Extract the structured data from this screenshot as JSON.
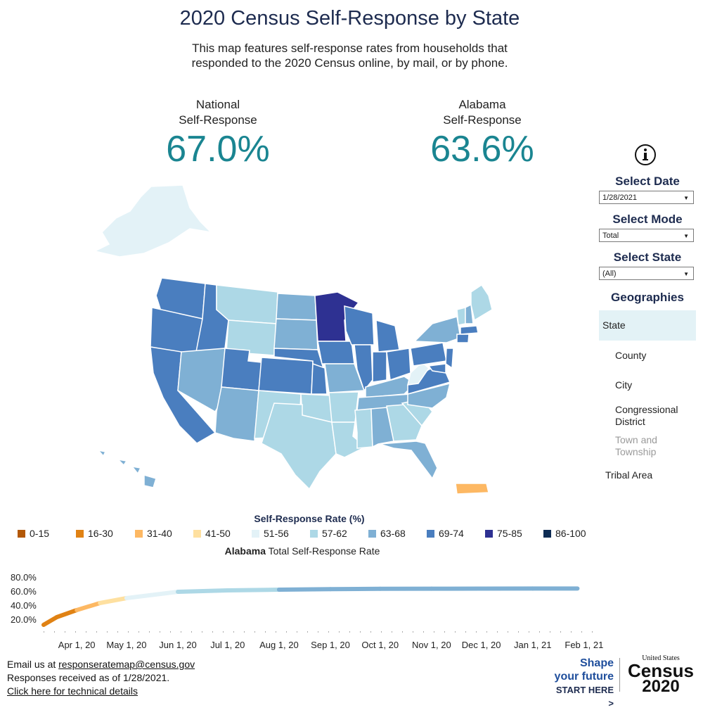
{
  "header": {
    "title": "2020 Census Self-Response by State",
    "subtitle": "This map features self-response rates from households that responded to the 2020 Census online, by mail, or by phone."
  },
  "kpis": {
    "national": {
      "label_line1": "National",
      "label_line2": "Self-Response",
      "value": "67.0%"
    },
    "state": {
      "label_line1": "Alabama",
      "label_line2": "Self-Response",
      "value": "63.6%"
    }
  },
  "controls": {
    "info_icon": "info-icon",
    "date": {
      "label": "Select Date",
      "value": "1/28/2021"
    },
    "mode": {
      "label": "Select Mode",
      "value": "Total"
    },
    "state": {
      "label": "Select State",
      "value": "(All)"
    }
  },
  "geographies": {
    "title": "Geographies",
    "items": [
      {
        "label": "State",
        "selected": true
      },
      {
        "label": "County"
      },
      {
        "label": "City"
      },
      {
        "label": "Congressional District"
      },
      {
        "label": "Town and Township",
        "disabled": true
      },
      {
        "label": "Tribal Area"
      }
    ]
  },
  "legend": {
    "title": "Self-Response Rate (%)",
    "items": [
      {
        "label": "0-15",
        "color": "#b35806"
      },
      {
        "label": "16-30",
        "color": "#e08214"
      },
      {
        "label": "31-40",
        "color": "#fdb863"
      },
      {
        "label": "41-50",
        "color": "#fee0a0"
      },
      {
        "label": "51-56",
        "color": "#e3f2f7"
      },
      {
        "label": "57-62",
        "color": "#add8e6"
      },
      {
        "label": "63-68",
        "color": "#7fb0d4"
      },
      {
        "label": "69-74",
        "color": "#4a7ebf"
      },
      {
        "label": "75-85",
        "color": "#2e3192"
      },
      {
        "label": "86-100",
        "color": "#0d2c54"
      }
    ]
  },
  "trend": {
    "title_bold": "Alabama",
    "title_rest": " Total Self-Response Rate"
  },
  "chart_data": {
    "type": "line",
    "title": "Alabama Total Self-Response Rate",
    "x": [
      "2020-03-12",
      "2020-03-20",
      "2020-04-01",
      "2020-04-15",
      "2020-05-01",
      "2020-06-01",
      "2020-07-01",
      "2020-08-01",
      "2020-09-01",
      "2020-10-01",
      "2020-11-01",
      "2020-12-01",
      "2021-01-01",
      "2021-01-28"
    ],
    "series": [
      {
        "values": [
          12,
          23,
          33,
          43,
          50,
          59,
          61,
          62,
          62.8,
          63.2,
          63.4,
          63.5,
          63.6,
          63.6
        ]
      }
    ],
    "x_tick_labels": [
      "Apr 1, 20",
      "May 1, 20",
      "Jun 1, 20",
      "Jul 1, 20",
      "Aug 1, 20",
      "Sep 1, 20",
      "Oct 1, 20",
      "Nov 1, 20",
      "Dec 1, 20",
      "Jan 1, 21",
      "Feb 1, 21"
    ],
    "y_tick_labels": [
      "80.0%",
      "60.0%",
      "40.0%",
      "20.0%"
    ],
    "ylim": [
      10,
      85
    ],
    "note": "line colored by self-response rate band"
  },
  "footer": {
    "email_prefix": "Email us at ",
    "email": "responseratemap@census.gov",
    "received": "Responses received as of 1/28/2021.",
    "tech_link": "Click here for technical details"
  },
  "branding": {
    "shape_line1": "Shape",
    "shape_line2": "your future",
    "cta": "START HERE >",
    "census_small": "United States",
    "census_word": "Census",
    "census_year": "2020"
  }
}
